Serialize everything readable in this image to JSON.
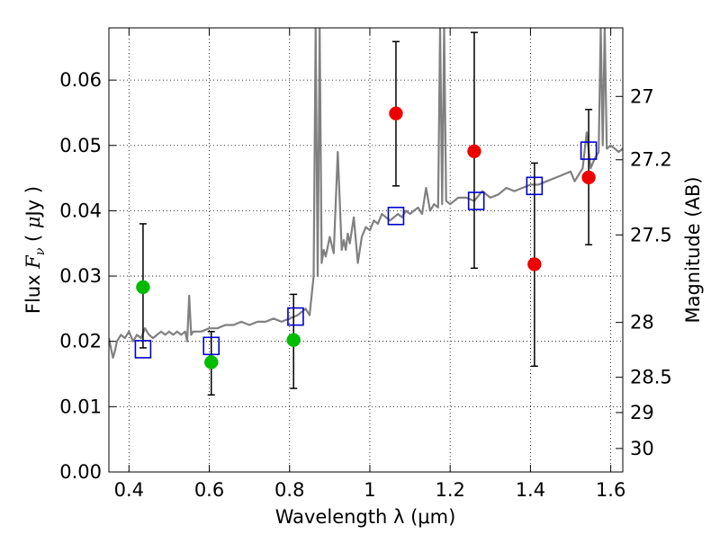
{
  "chart_data": {
    "type": "scatter",
    "xlabel": "Wavelength  λ (μm)",
    "ylabel": "Flux  F_ν  ( μJy )",
    "ylabel_right": "Magnitude (AB)",
    "xlim": [
      0.35,
      1.63
    ],
    "ylim": [
      0.0,
      0.068
    ],
    "grid": true,
    "x_ticks": [
      0.4,
      0.6,
      0.8,
      1.0,
      1.2,
      1.4,
      1.6
    ],
    "x_tick_labels": [
      "0.4",
      "0.6",
      "0.8",
      "1",
      "1.2",
      "1.4",
      "1.6"
    ],
    "y_ticks": [
      0.0,
      0.01,
      0.02,
      0.03,
      0.04,
      0.05,
      0.06
    ],
    "y_tick_labels": [
      "0.00",
      "0.01",
      "0.02",
      "0.03",
      "0.04",
      "0.05",
      "0.06"
    ],
    "right_ticks": [
      {
        "label": "27",
        "flux": 0.0575
      },
      {
        "label": "27.2",
        "flux": 0.0478
      },
      {
        "label": "27.5",
        "flux": 0.0363
      },
      {
        "label": "28",
        "flux": 0.0229
      },
      {
        "label": "28.5",
        "flux": 0.0145
      },
      {
        "label": "29",
        "flux": 0.0091
      },
      {
        "label": "30",
        "flux": 0.0036
      }
    ],
    "series": [
      {
        "kind": "spectrum",
        "color": "#808080",
        "x": [
          0.35,
          0.355,
          0.36,
          0.365,
          0.37,
          0.38,
          0.39,
          0.4,
          0.41,
          0.42,
          0.43,
          0.44,
          0.45,
          0.46,
          0.47,
          0.48,
          0.49,
          0.5,
          0.51,
          0.52,
          0.53,
          0.54,
          0.545,
          0.55,
          0.555,
          0.56,
          0.57,
          0.58,
          0.6,
          0.62,
          0.64,
          0.66,
          0.68,
          0.7,
          0.72,
          0.74,
          0.76,
          0.78,
          0.8,
          0.82,
          0.84,
          0.85,
          0.86,
          0.865,
          0.87,
          0.875,
          0.88,
          0.885,
          0.89,
          0.9,
          0.91,
          0.92,
          0.93,
          0.935,
          0.94,
          0.945,
          0.95,
          0.96,
          0.97,
          0.98,
          0.99,
          1.0,
          1.01,
          1.02,
          1.03,
          1.04,
          1.05,
          1.06,
          1.07,
          1.08,
          1.09,
          1.1,
          1.11,
          1.12,
          1.13,
          1.14,
          1.15,
          1.16,
          1.17,
          1.175,
          1.18,
          1.185,
          1.19,
          1.2,
          1.22,
          1.24,
          1.26,
          1.28,
          1.3,
          1.32,
          1.34,
          1.36,
          1.38,
          1.4,
          1.42,
          1.44,
          1.46,
          1.48,
          1.5,
          1.51,
          1.52,
          1.53,
          1.54,
          1.55,
          1.56,
          1.57,
          1.575,
          1.58,
          1.585,
          1.59,
          1.6,
          1.61,
          1.62,
          1.63
        ],
        "y": [
          0.0205,
          0.019,
          0.0175,
          0.0185,
          0.02,
          0.021,
          0.0205,
          0.0215,
          0.02,
          0.021,
          0.0205,
          0.022,
          0.021,
          0.0205,
          0.021,
          0.0215,
          0.021,
          0.0215,
          0.021,
          0.0215,
          0.021,
          0.0215,
          0.02,
          0.027,
          0.021,
          0.0215,
          0.0215,
          0.0215,
          0.022,
          0.022,
          0.0225,
          0.0225,
          0.023,
          0.0225,
          0.023,
          0.023,
          0.0235,
          0.023,
          0.0235,
          0.024,
          0.025,
          0.024,
          0.03,
          0.068,
          0.03,
          0.068,
          0.032,
          0.034,
          0.033,
          0.036,
          0.0335,
          0.049,
          0.034,
          0.0355,
          0.034,
          0.0365,
          0.035,
          0.039,
          0.032,
          0.036,
          0.0375,
          0.037,
          0.0385,
          0.038,
          0.0395,
          0.039,
          0.0385,
          0.039,
          0.0395,
          0.039,
          0.04,
          0.0395,
          0.04,
          0.0405,
          0.0395,
          0.0435,
          0.04,
          0.041,
          0.0405,
          0.068,
          0.041,
          0.068,
          0.0415,
          0.041,
          0.042,
          0.042,
          0.0415,
          0.043,
          0.042,
          0.0425,
          0.0435,
          0.043,
          0.0435,
          0.044,
          0.044,
          0.0445,
          0.045,
          0.0455,
          0.046,
          0.0445,
          0.0455,
          0.0465,
          0.052,
          0.0465,
          0.048,
          0.049,
          0.068,
          0.05,
          0.068,
          0.0495,
          0.05,
          0.0495,
          0.049,
          0.0495
        ]
      },
      {
        "kind": "model-squares",
        "color": "#0000cc",
        "x": [
          0.435,
          0.605,
          0.815,
          1.065,
          1.265,
          1.41,
          1.545
        ],
        "y": [
          0.0188,
          0.0193,
          0.0238,
          0.0392,
          0.0415,
          0.0438,
          0.0492
        ]
      },
      {
        "kind": "points-green",
        "color": "#00bb00",
        "x": [
          0.435,
          0.605,
          0.81
        ],
        "y": [
          0.0283,
          0.0168,
          0.0202
        ],
        "yerr_low": [
          0.019,
          0.0118,
          0.0128
        ],
        "yerr_high": [
          0.038,
          0.0215,
          0.0272
        ]
      },
      {
        "kind": "points-red",
        "color": "#ee0000",
        "x": [
          1.065,
          1.26,
          1.41,
          1.545
        ],
        "y": [
          0.0549,
          0.0491,
          0.0318,
          0.0451
        ],
        "yerr_low": [
          0.0438,
          0.0312,
          0.0162,
          0.0348
        ],
        "yerr_high": [
          0.0659,
          0.0673,
          0.0473,
          0.0555
        ]
      }
    ]
  }
}
